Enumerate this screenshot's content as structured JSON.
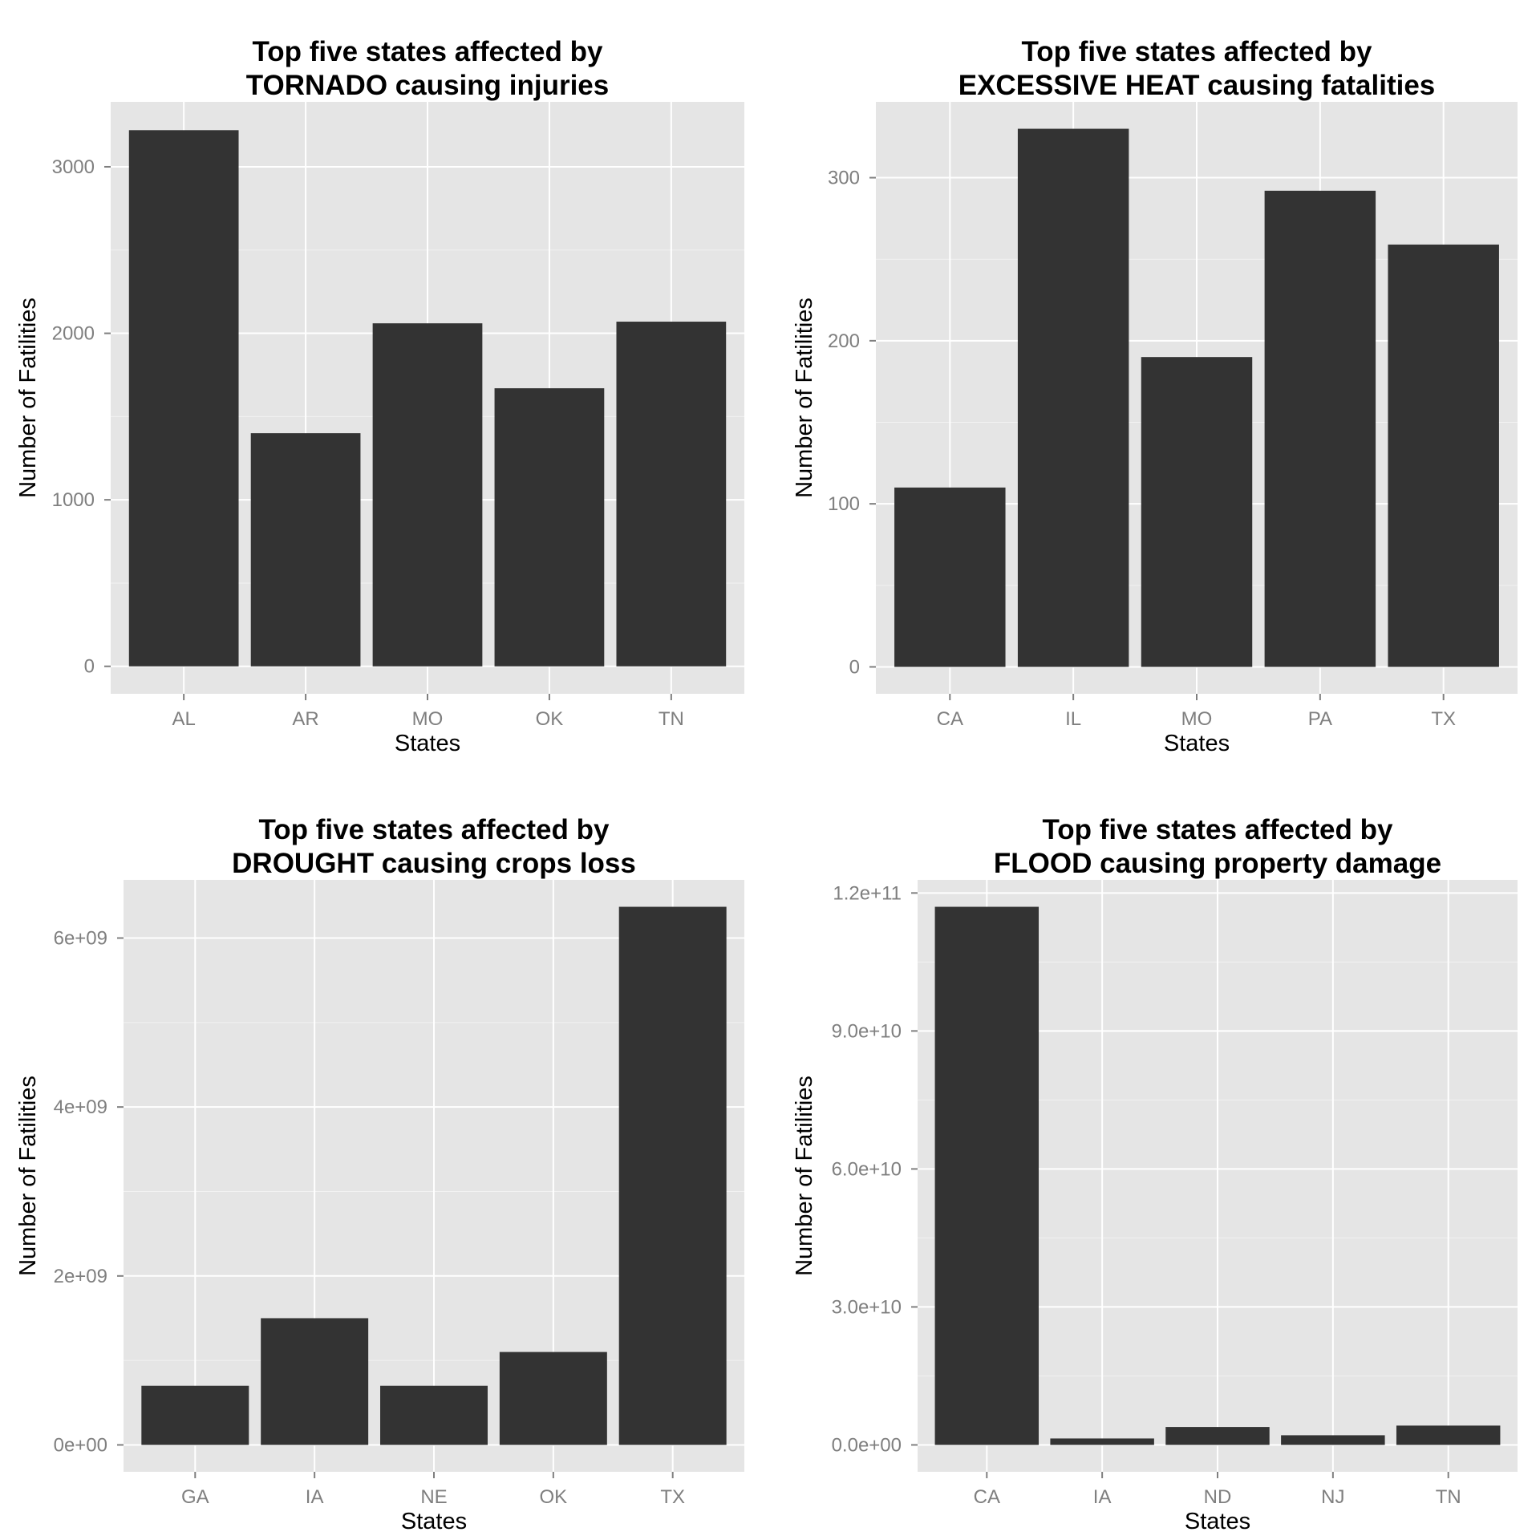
{
  "chart_data": [
    {
      "type": "bar",
      "title": [
        "Top five states affected by",
        "TORNADO causing injuries"
      ],
      "xlabel": "States",
      "ylabel": "Number of Fatilities",
      "categories": [
        "AL",
        "AR",
        "MO",
        "OK",
        "TN"
      ],
      "values": [
        3220,
        1400,
        2060,
        1670,
        2070
      ],
      "ylim": [
        -165,
        3390
      ],
      "yticks": [
        0,
        1000,
        2000,
        3000
      ],
      "ytick_labels": [
        "0",
        "1000",
        "2000",
        "3000"
      ],
      "grid": true
    },
    {
      "type": "bar",
      "title": [
        "Top five states affected by",
        "EXCESSIVE HEAT causing fatalities"
      ],
      "xlabel": "States",
      "ylabel": "Number of Fatilities",
      "categories": [
        "CA",
        "IL",
        "MO",
        "PA",
        "TX"
      ],
      "values": [
        110,
        330,
        190,
        292,
        259
      ],
      "ylim": [
        -16.5,
        346.5
      ],
      "yticks": [
        0,
        100,
        200,
        300
      ],
      "ytick_labels": [
        "0",
        "100",
        "200",
        "300"
      ],
      "grid": true
    },
    {
      "type": "bar",
      "title": [
        "Top five states affected by",
        "DROUGHT causing crops loss"
      ],
      "xlabel": "States",
      "ylabel": "Number of Fatilities",
      "categories": [
        "GA",
        "IA",
        "NE",
        "OK",
        "TX"
      ],
      "values": [
        700000000,
        1500000000,
        700000000,
        1100000000,
        6370000000
      ],
      "ylim": [
        -318500000,
        6688500000
      ],
      "yticks": [
        0,
        2000000000,
        4000000000,
        6000000000
      ],
      "ytick_labels": [
        "0e+00",
        "2e+09",
        "4e+09",
        "6e+09"
      ],
      "grid": true
    },
    {
      "type": "bar",
      "title": [
        "Top five states affected by",
        "FLOOD causing property damage"
      ],
      "xlabel": "States",
      "ylabel": "Number of Fatilities",
      "categories": [
        "CA",
        "IA",
        "ND",
        "NJ",
        "TN"
      ],
      "values": [
        117000000000,
        1400000000,
        3900000000,
        2100000000,
        4200000000
      ],
      "ylim": [
        -5850000000,
        122850000000
      ],
      "yticks": [
        0,
        30000000000,
        60000000000,
        90000000000,
        120000000000
      ],
      "ytick_labels": [
        "0.0e+00",
        "3.0e+10",
        "6.0e+10",
        "9.0e+10",
        "1.2e+11"
      ],
      "grid": true
    }
  ],
  "colors": {
    "panel_background": "#e5e5e5",
    "grid_major": "#ffffff",
    "grid_minor": "#f2f2f2",
    "bar_fill": "#333333",
    "tick_label": "#7f7f7f",
    "text": "#000000"
  }
}
